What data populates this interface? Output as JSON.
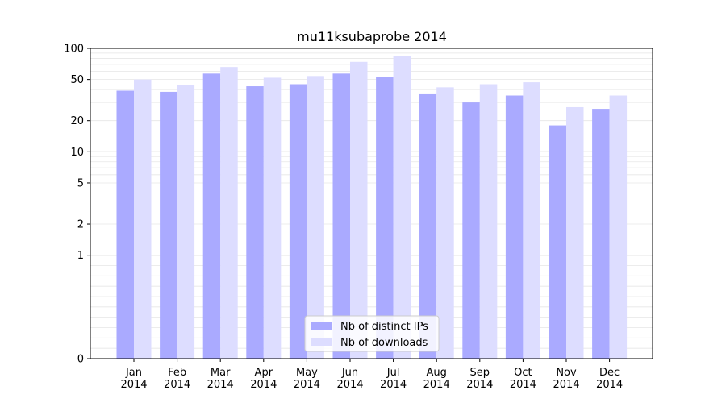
{
  "chart_data": {
    "type": "bar",
    "title": "mu11ksubaprobe 2014",
    "xlabel": "",
    "ylabel": "",
    "y_scale": "symlog",
    "ylim": [
      0,
      100
    ],
    "y_ticks": [
      0,
      1,
      2,
      5,
      10,
      20,
      50,
      100
    ],
    "y_tick_labels": [
      "0",
      "1",
      "2",
      "5",
      "10",
      "20",
      "50",
      "100"
    ],
    "categories": [
      "Jan\n2014",
      "Feb\n2014",
      "Mar\n2014",
      "Apr\n2014",
      "May\n2014",
      "Jun\n2014",
      "Jul\n2014",
      "Aug\n2014",
      "Sep\n2014",
      "Oct\n2014",
      "Nov\n2014",
      "Dec\n2014"
    ],
    "series": [
      {
        "name": "Nb of distinct IPs",
        "color": "#aaaaff",
        "values": [
          39,
          38,
          57,
          43,
          45,
          57,
          53,
          36,
          30,
          35,
          18,
          26
        ]
      },
      {
        "name": "Nb of downloads",
        "color": "#ddddff",
        "values": [
          50,
          44,
          66,
          52,
          54,
          74,
          85,
          42,
          45,
          47,
          27,
          35
        ]
      }
    ],
    "legend_position": "bottom-center",
    "grid": true
  }
}
